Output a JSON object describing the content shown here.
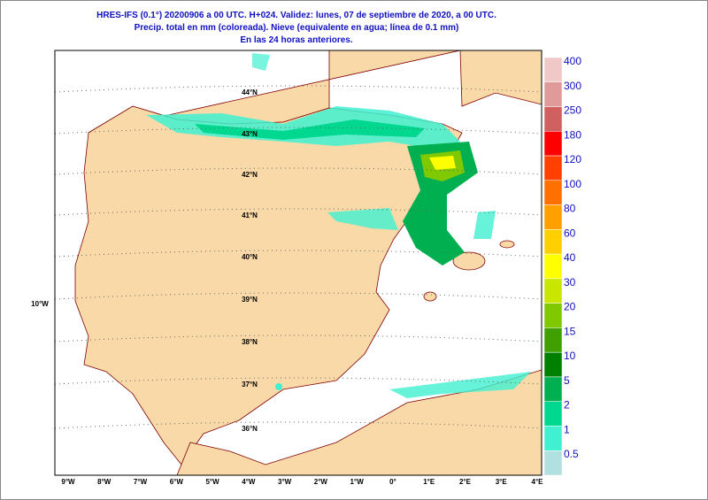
{
  "header": {
    "lines": [
      "HRES-IFS (0.1°) 20200906 a 00 UTC.  H+024. Validez: lunes, 07 de septiembre de 2020,  a  00 UTC.",
      "Precip. total en mm (coloreada). Nieve (equivalente en agua; línea de 0.1 mm)",
      "En las 24 horas anteriores."
    ]
  },
  "map": {
    "latitude_labels": [
      "44°N",
      "43°N",
      "42°N",
      "41°N",
      "40°N",
      "39°N",
      "38°N",
      "37°N",
      "36°N"
    ],
    "longitude_labels": [
      "9°W",
      "8°W",
      "7°W",
      "6°W",
      "5°W",
      "4°W",
      "3°W",
      "2°W",
      "1°W",
      "0°",
      "1°E",
      "2°E",
      "3°E",
      "4°E"
    ],
    "side_label": "10°W"
  },
  "legend": {
    "items": [
      {
        "label": "400",
        "color": "#f0c8c8"
      },
      {
        "label": "300",
        "color": "#e09a9a"
      },
      {
        "label": "250",
        "color": "#d06060"
      },
      {
        "label": "180",
        "color": "#ff0000"
      },
      {
        "label": "120",
        "color": "#ff4000"
      },
      {
        "label": "100",
        "color": "#ff7000"
      },
      {
        "label": "80",
        "color": "#ffa000"
      },
      {
        "label": "60",
        "color": "#ffd000"
      },
      {
        "label": "40",
        "color": "#ffff00"
      },
      {
        "label": "30",
        "color": "#c8e600"
      },
      {
        "label": "20",
        "color": "#80c800"
      },
      {
        "label": "15",
        "color": "#40a000"
      },
      {
        "label": "10",
        "color": "#008000"
      },
      {
        "label": "5",
        "color": "#00b050"
      },
      {
        "label": "2",
        "color": "#00d890"
      },
      {
        "label": "1",
        "color": "#40f0d0"
      },
      {
        "label": "0.5",
        "color": "#b0e0e0"
      }
    ]
  }
}
